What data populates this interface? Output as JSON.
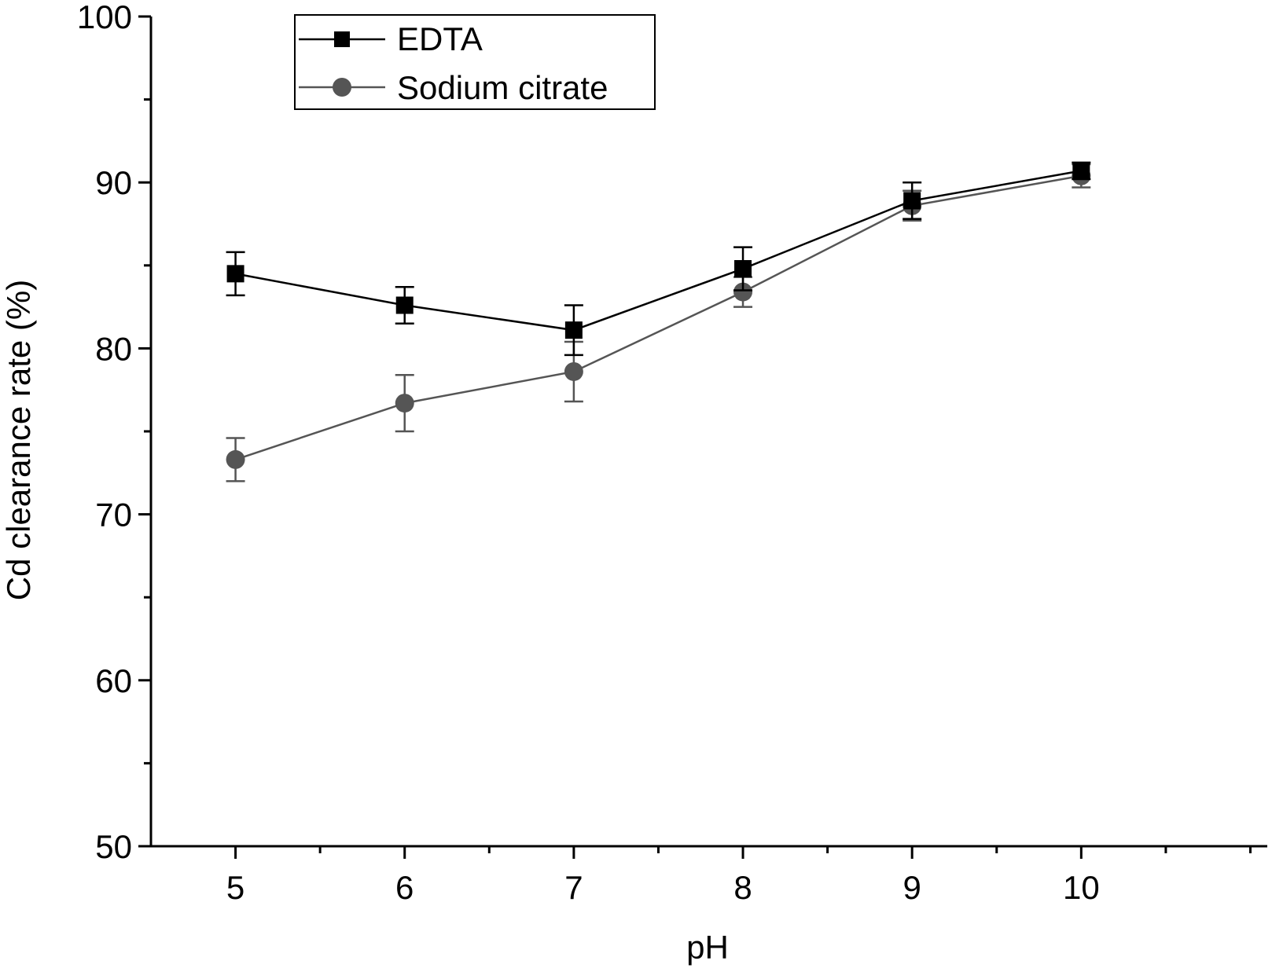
{
  "chart_data": {
    "type": "line",
    "xlabel": "pH",
    "ylabel": "Cd clearance rate (%)",
    "xlim": [
      4.5,
      11.1
    ],
    "ylim": [
      50,
      100
    ],
    "x_ticks": [
      5,
      6,
      7,
      8,
      9,
      10
    ],
    "y_ticks": [
      50,
      60,
      70,
      80,
      90,
      100
    ],
    "y_minor_ticks": [
      55,
      65,
      75,
      85,
      95
    ],
    "x_minor_ticks": [
      5.5,
      6.5,
      7.5,
      8.5,
      9.5,
      10.5,
      11
    ],
    "grid": false,
    "legend_position": "top-left",
    "x": [
      5,
      6,
      7,
      8,
      9,
      10
    ],
    "series": [
      {
        "name": "EDTA",
        "marker": "square",
        "color": "#000000",
        "values": [
          84.5,
          82.6,
          81.1,
          84.8,
          88.9,
          90.7
        ],
        "errors": [
          1.3,
          1.1,
          1.5,
          1.3,
          1.1,
          0.5
        ]
      },
      {
        "name": "Sodium citrate",
        "marker": "circle",
        "color": "#555555",
        "values": [
          73.3,
          76.7,
          78.6,
          83.4,
          88.6,
          90.4
        ],
        "errors": [
          1.3,
          1.7,
          1.8,
          0.9,
          0.9,
          0.7
        ]
      }
    ]
  }
}
